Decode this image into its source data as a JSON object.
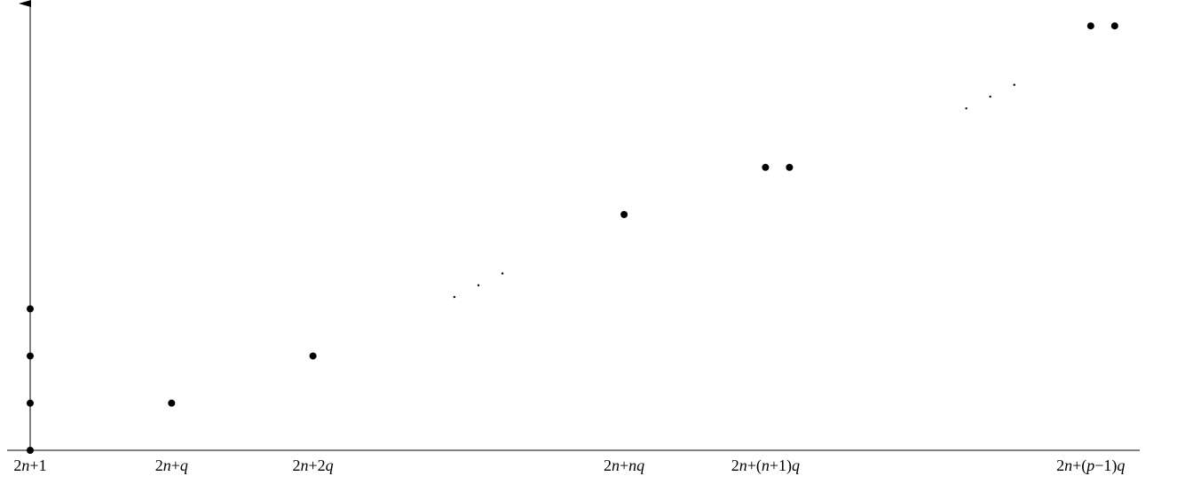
{
  "chart_data": {
    "type": "scatter",
    "title": "",
    "xlabel": "",
    "ylabel": "",
    "x_tick_labels": [
      {
        "parts": [
          {
            "t": "2",
            "i": false
          },
          {
            "t": "n",
            "i": true
          },
          {
            "t": "+1",
            "i": false
          }
        ],
        "text": "2n+1"
      },
      {
        "parts": [
          {
            "t": "2",
            "i": false
          },
          {
            "t": "n",
            "i": true
          },
          {
            "t": "+",
            "i": false
          },
          {
            "t": "q",
            "i": true
          }
        ],
        "text": "2n+q"
      },
      {
        "parts": [
          {
            "t": "2",
            "i": false
          },
          {
            "t": "n",
            "i": true
          },
          {
            "t": "+2",
            "i": false
          },
          {
            "t": "q",
            "i": true
          }
        ],
        "text": "2n+2q"
      },
      {
        "parts": [
          {
            "t": "2",
            "i": false
          },
          {
            "t": "n",
            "i": true
          },
          {
            "t": "+",
            "i": false
          },
          {
            "t": "nq",
            "i": true
          }
        ],
        "text": "2n+nq"
      },
      {
        "parts": [
          {
            "t": "2",
            "i": false
          },
          {
            "t": "n",
            "i": true
          },
          {
            "t": "+(",
            "i": false
          },
          {
            "t": "n",
            "i": true
          },
          {
            "t": "+1)",
            "i": false
          },
          {
            "t": "q",
            "i": true
          }
        ],
        "text": "2n+(n+1)q"
      },
      {
        "parts": [
          {
            "t": "2",
            "i": false
          },
          {
            "t": "n",
            "i": true
          },
          {
            "t": "+(",
            "i": false
          },
          {
            "t": "p",
            "i": true
          },
          {
            "t": "−1)",
            "i": false
          },
          {
            "t": "q",
            "i": true
          }
        ],
        "text": "2n+(p−1)q"
      }
    ],
    "tick_positions": [
      0,
      1,
      2,
      4.2,
      5.2,
      7.5
    ],
    "points": [
      {
        "x": 0,
        "y": 0
      },
      {
        "x": 0,
        "y": 1
      },
      {
        "x": 0,
        "y": 2
      },
      {
        "x": 0,
        "y": 3
      },
      {
        "x": 1,
        "y": 1
      },
      {
        "x": 2,
        "y": 2
      },
      {
        "x": 4.2,
        "y": 5
      },
      {
        "x": 5.2,
        "y": 6
      },
      {
        "x": 5.37,
        "y": 6
      },
      {
        "x": 7.5,
        "y": 9
      },
      {
        "x": 7.67,
        "y": 9
      }
    ],
    "ellipsis_points": [
      {
        "x": 3.0,
        "y": 3.25
      },
      {
        "x": 3.17,
        "y": 3.5
      },
      {
        "x": 3.34,
        "y": 3.75
      },
      {
        "x": 6.62,
        "y": 7.25
      },
      {
        "x": 6.79,
        "y": 7.5
      },
      {
        "x": 6.96,
        "y": 7.75
      }
    ],
    "xlim": [
      0,
      7.83
    ],
    "ylim": [
      0,
      9.07
    ],
    "grid": false,
    "legend": "none",
    "colors": {
      "axis": "#000000",
      "point": "#000000"
    }
  }
}
